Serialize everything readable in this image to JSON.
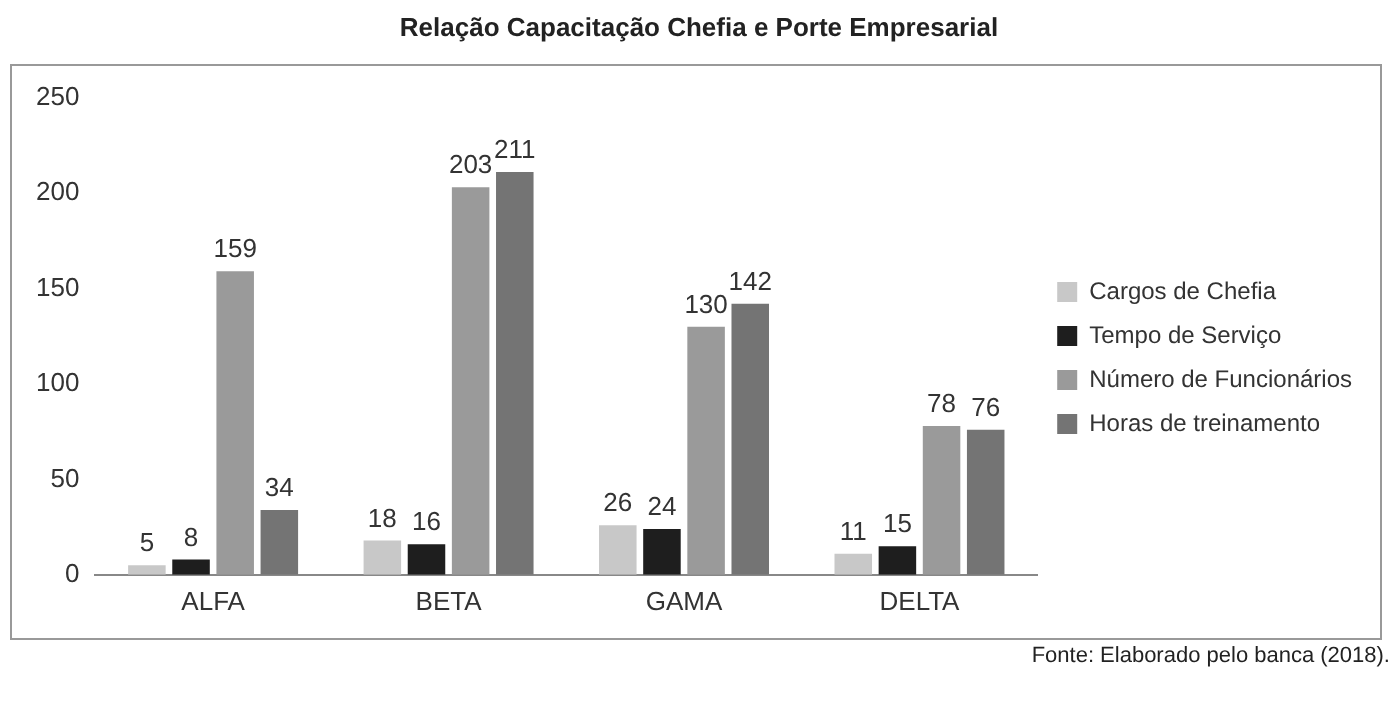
{
  "chart_data": {
    "type": "bar",
    "title": "Relação Capacitação Chefia e Porte Empresarial",
    "categories": [
      "ALFA",
      "BETA",
      "GAMA",
      "DELTA"
    ],
    "series": [
      {
        "name": "Cargos de Chefia",
        "color": "#c8c8c8",
        "values": [
          5,
          18,
          26,
          11
        ]
      },
      {
        "name": "Tempo de Serviço",
        "color": "#1e1e1e",
        "values": [
          8,
          16,
          24,
          15
        ]
      },
      {
        "name": "Número de Funcionários",
        "color": "#9a9a9a",
        "values": [
          159,
          203,
          130,
          78
        ]
      },
      {
        "name": "Horas de treinamento",
        "color": "#747474",
        "values": [
          34,
          211,
          142,
          76
        ]
      }
    ],
    "ylim": [
      0,
      250
    ],
    "yticks": [
      0,
      50,
      100,
      150,
      200,
      250
    ],
    "grid": false,
    "legend": "right",
    "data_labels": true,
    "annotations": [
      "Fonte: Elaborado pelo banca (2018)."
    ]
  }
}
